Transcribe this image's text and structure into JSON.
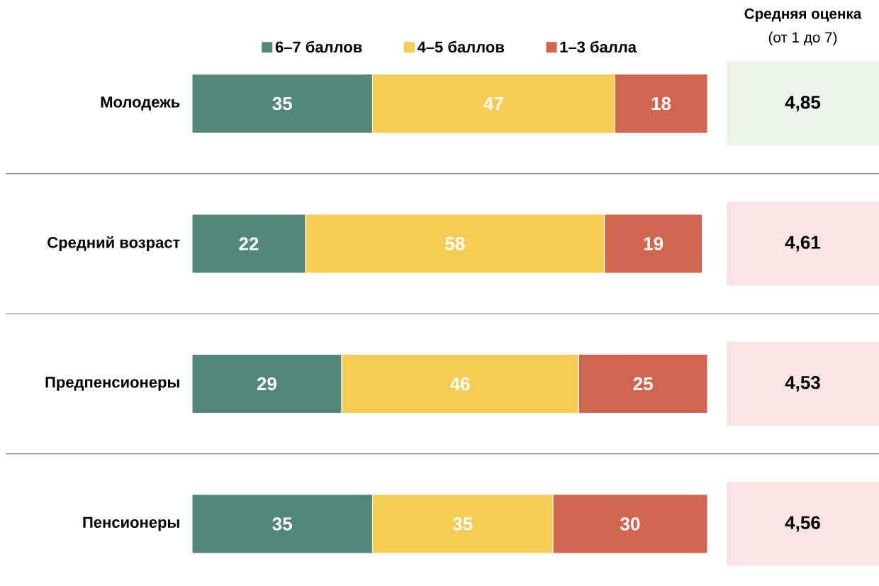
{
  "chart_data": [
    {
      "type": "bar",
      "orientation": "horizontal",
      "stacked": true,
      "data_labels": true,
      "legend": "top",
      "tick_labels": "y",
      "categories": [
        "Молодежь",
        "Средний возраст",
        "Предпенсионеры",
        "Пенсионеры"
      ],
      "series": [
        {
          "name": "6–7 баллов",
          "color": "#52877a",
          "values": [
            35,
            22,
            29,
            35
          ]
        },
        {
          "name": "4–5 баллов",
          "color": "#f5cd55",
          "values": [
            47,
            58,
            46,
            35
          ]
        },
        {
          "name": "1–3 балла",
          "color": "#d06550",
          "values": [
            18,
            19,
            25,
            30
          ]
        }
      ]
    },
    {
      "type": "other",
      "title": "Средняя оценка",
      "subtitle": "(от 1 до 7)",
      "annotations": [
        "4,85",
        "4,61",
        "4,53",
        "4,56"
      ],
      "colors": [
        "#ebf6e9",
        "#fae4e3",
        "#fae4e3",
        "#fae4e3"
      ]
    }
  ]
}
